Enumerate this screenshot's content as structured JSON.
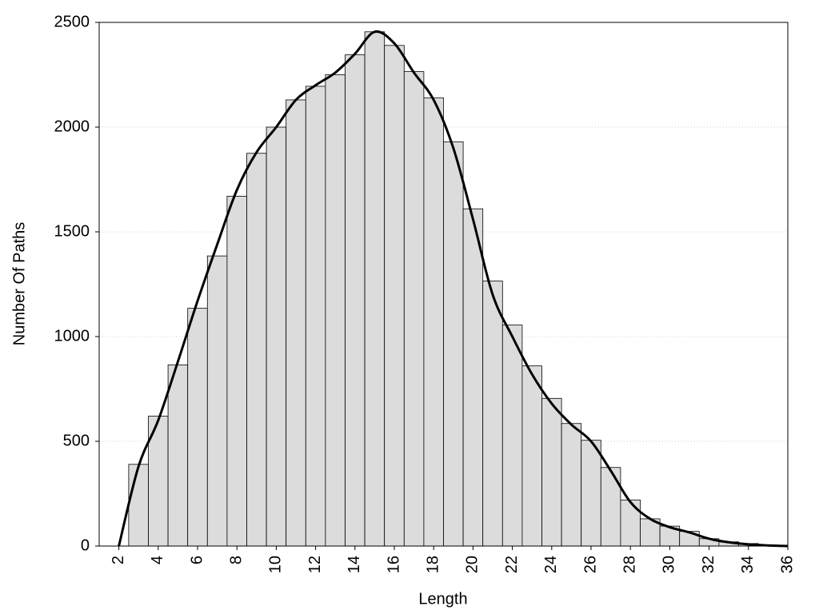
{
  "chart_data": {
    "type": "histogram",
    "x_label": "Length",
    "y_label": "Number Of Paths",
    "bins": [
      2.5,
      3.5,
      4.5,
      5.5,
      6.5,
      7.5,
      8.5,
      9.5,
      10.5,
      11.5,
      12.5,
      13.5,
      14.5,
      15.5,
      16.5,
      17.5,
      18.5,
      19.5,
      20.5,
      21.5,
      22.5,
      23.5,
      24.5,
      25.5,
      26.5,
      27.5,
      28.5,
      29.5,
      30.5,
      31.5,
      32.5,
      33.5,
      34.5,
      35.5
    ],
    "values": [
      390,
      620,
      865,
      1135,
      1385,
      1670,
      1875,
      2000,
      2130,
      2195,
      2250,
      2345,
      2455,
      2390,
      2265,
      2140,
      1930,
      1610,
      1265,
      1055,
      860,
      705,
      585,
      505,
      375,
      220,
      130,
      95,
      70,
      35,
      20,
      12,
      5
    ],
    "color": "#dcdcdc",
    "line": {
      "color": "#000000",
      "x": [
        2,
        3,
        4,
        5,
        6,
        7,
        8,
        9,
        10,
        11,
        12,
        13,
        14,
        15,
        16,
        17,
        18,
        19,
        20,
        21,
        22,
        23,
        24,
        25,
        26,
        27,
        28,
        29,
        30,
        31,
        32,
        33,
        34,
        35,
        36
      ],
      "values": [
        0,
        380,
        600,
        880,
        1170,
        1440,
        1700,
        1880,
        2000,
        2130,
        2200,
        2260,
        2350,
        2455,
        2400,
        2260,
        2130,
        1900,
        1560,
        1200,
        1000,
        820,
        680,
        580,
        500,
        360,
        210,
        130,
        90,
        65,
        35,
        18,
        8,
        3,
        0
      ]
    },
    "xlim": [
      1,
      36
    ],
    "xticks": [
      2,
      4,
      6,
      8,
      10,
      12,
      14,
      16,
      18,
      20,
      22,
      24,
      26,
      28,
      30,
      32,
      34,
      36
    ],
    "ylim": [
      0,
      2500
    ],
    "yticks": [
      0,
      500,
      1000,
      1500,
      2000,
      2500
    ],
    "grid": true
  }
}
